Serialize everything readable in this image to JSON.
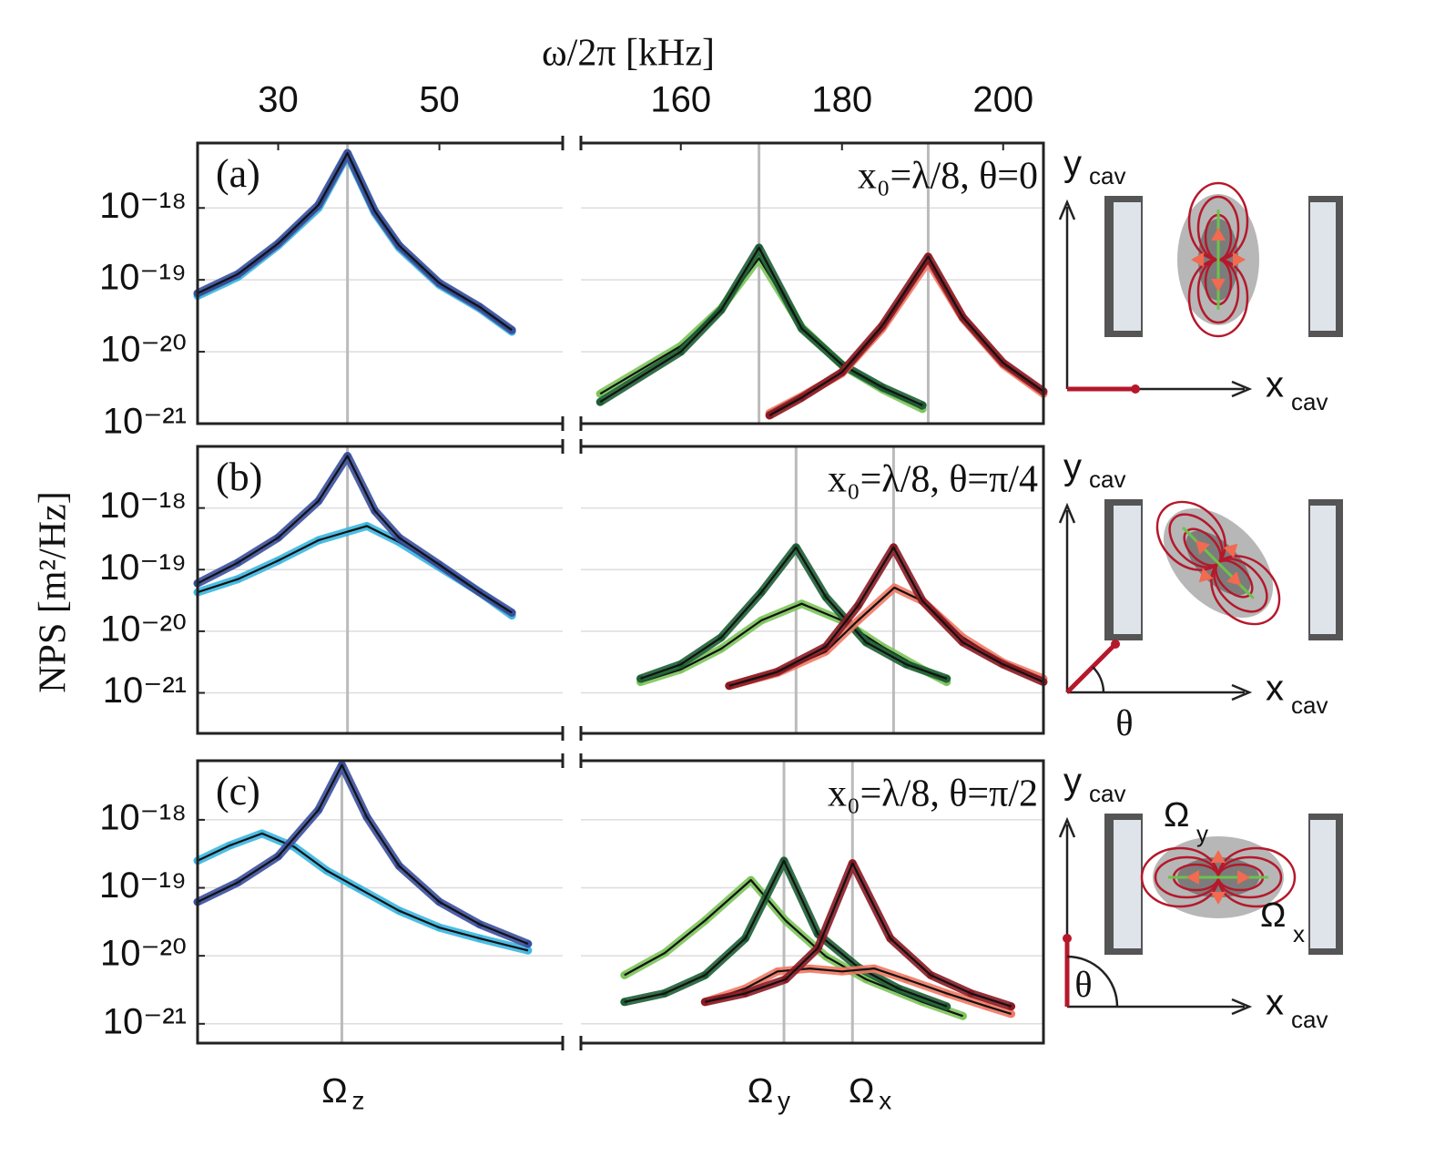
{
  "figure": {
    "x_label": "ω/2π [kHz]",
    "y_label": "NPS [m²/Hz]",
    "xticks_left": [
      30,
      50
    ],
    "xticks_right": [
      160,
      180,
      200
    ],
    "peak_labels": [
      {
        "symbol": "Ω",
        "sub": "z"
      },
      {
        "symbol": "Ω",
        "sub": "y"
      },
      {
        "symbol": "Ω",
        "sub": "x"
      }
    ],
    "diagram": {
      "y_axis": "y",
      "x_axis": "x",
      "subscript": "cav",
      "theta": "θ",
      "omega": "Ω",
      "omega_y_sub": "y",
      "omega_x_sub": "x"
    }
  },
  "chart_data": [
    {
      "type": "line",
      "label": "(a)",
      "annotation": "x₀=λ/8, θ=0",
      "log_y": true,
      "ylim": [
        1e-21,
        8e-18
      ],
      "yticks": [
        {
          "value": 1e-18,
          "label": "10⁻¹⁸"
        },
        {
          "value": 1e-19,
          "label": "10⁻¹⁹"
        },
        {
          "value": 1e-20,
          "label": "10⁻²⁰"
        },
        {
          "value": 1e-21,
          "label": "10⁻²¹"
        }
      ],
      "xlim_left": [
        20,
        65.3
      ],
      "xlim_right": [
        147.6,
        205
      ],
      "peak_lines": [
        38.6,
        169.7,
        190.7
      ],
      "series": [
        {
          "color": "#3bb6e0",
          "x": [
            20,
            25,
            30,
            35,
            38.6,
            42,
            45,
            50,
            55,
            59
          ],
          "values": [
            6e-20,
            1.1e-19,
            3e-19,
            1e-18,
            5.5e-18,
            8.5e-19,
            2.8e-19,
            8.5e-20,
            4e-20,
            1.9e-20
          ]
        },
        {
          "color": "#3a4f9c",
          "x": [
            20,
            25,
            30,
            35,
            38.6,
            42,
            45,
            50,
            55,
            59
          ],
          "values": [
            6.5e-20,
            1.2e-19,
            3.2e-19,
            1.1e-18,
            5.8e-18,
            9e-19,
            3e-19,
            9e-20,
            4.2e-20,
            2e-20
          ]
        },
        {
          "color": "#7cc45a",
          "x": [
            150,
            160,
            165,
            169.7,
            175,
            180,
            185,
            190
          ],
          "values": [
            2.6e-21,
            1.2e-20,
            4e-20,
            2e-19,
            2.2e-20,
            6.5e-21,
            3e-21,
            1.6e-21
          ]
        },
        {
          "color": "#1d5e34",
          "x": [
            150,
            160,
            165,
            169.7,
            175,
            180,
            185,
            190
          ],
          "values": [
            2e-21,
            1e-20,
            3.8e-20,
            2.8e-19,
            2.1e-20,
            6.6e-21,
            3.2e-21,
            1.8e-21
          ]
        },
        {
          "color": "#f07a65",
          "x": [
            171,
            175,
            180,
            185,
            190.7,
            195,
            200,
            205
          ],
          "values": [
            1.4e-21,
            2.4e-21,
            5e-21,
            2.1e-20,
            1.8e-19,
            2.9e-20,
            6.6e-21,
            2.6e-21
          ]
        },
        {
          "color": "#8b1a24",
          "x": [
            171,
            175,
            180,
            185,
            190.7,
            195,
            200,
            205
          ],
          "values": [
            1.3e-21,
            2.3e-21,
            5.2e-21,
            2.3e-20,
            2.1e-19,
            3e-20,
            7e-21,
            2.8e-21
          ]
        }
      ]
    },
    {
      "type": "line",
      "label": "(b)",
      "annotation": "x₀=λ/8, θ=π/4",
      "log_y": true,
      "ylim": [
        2.2e-22,
        1e-17
      ],
      "yticks": [
        {
          "value": 1e-18,
          "label": "10⁻¹⁸"
        },
        {
          "value": 1e-19,
          "label": "10⁻¹⁹"
        },
        {
          "value": 1e-20,
          "label": "10⁻²⁰"
        },
        {
          "value": 1e-21,
          "label": "10⁻²¹"
        }
      ],
      "xlim_left": [
        20,
        65.3
      ],
      "xlim_right": [
        147.6,
        205
      ],
      "peak_lines": [
        38.6,
        174.3,
        186.4
      ],
      "series": [
        {
          "color": "#3bb6e0",
          "x": [
            20,
            25,
            30,
            35,
            41,
            45,
            50,
            55,
            59
          ],
          "values": [
            4.3e-20,
            7e-20,
            1.4e-19,
            3e-19,
            5.1e-19,
            2.8e-19,
            1.1e-19,
            4.3e-20,
            1.8e-20
          ]
        },
        {
          "color": "#3a4f9c",
          "x": [
            20,
            25,
            30,
            35,
            38.6,
            42,
            45,
            50,
            55,
            59
          ],
          "values": [
            6e-20,
            1.3e-19,
            3.3e-19,
            1.3e-18,
            7e-18,
            9e-19,
            3.3e-19,
            1.2e-19,
            4.3e-20,
            2e-20
          ]
        },
        {
          "color": "#7cc45a",
          "x": [
            155,
            160,
            165,
            170,
            175,
            180,
            185,
            190,
            193
          ],
          "values": [
            1.5e-21,
            2.4e-21,
            5.2e-21,
            1.5e-20,
            2.8e-20,
            1.5e-20,
            5.6e-21,
            2.4e-21,
            1.5e-21
          ]
        },
        {
          "color": "#1d5e34",
          "x": [
            155,
            160,
            165,
            170,
            174.3,
            178,
            183,
            188,
            193
          ],
          "values": [
            1.7e-21,
            2.9e-21,
            7.9e-21,
            4.3e-20,
            2.3e-19,
            3.6e-20,
            6.6e-21,
            2.9e-21,
            1.7e-21
          ]
        },
        {
          "color": "#f07a65",
          "x": [
            166,
            172,
            178,
            182,
            186.5,
            190,
            195,
            200,
            205
          ],
          "values": [
            1.3e-21,
            2.1e-21,
            4.7e-21,
            1.5e-20,
            5.1e-20,
            3.1e-20,
            7.9e-21,
            3.1e-21,
            1.7e-21
          ]
        },
        {
          "color": "#8b1a24",
          "x": [
            166,
            172,
            178,
            182,
            186.4,
            190,
            195,
            200,
            205
          ],
          "values": [
            1.3e-21,
            2.2e-21,
            5.6e-21,
            2.6e-20,
            2.3e-19,
            3.1e-20,
            6.6e-21,
            2.9e-21,
            1.5e-21
          ]
        }
      ]
    },
    {
      "type": "line",
      "label": "(c)",
      "annotation": "x₀=λ/8, θ=π/2",
      "log_y": true,
      "ylim": [
        5.2e-22,
        7.4e-18
      ],
      "yticks": [
        {
          "value": 1e-18,
          "label": "10⁻¹⁸"
        },
        {
          "value": 1e-19,
          "label": "10⁻¹⁹"
        },
        {
          "value": 1e-20,
          "label": "10⁻²⁰"
        },
        {
          "value": 1e-21,
          "label": "10⁻²¹"
        }
      ],
      "xlim_left": [
        20,
        65.3
      ],
      "xlim_right": [
        147.6,
        205
      ],
      "peak_lines": [
        37.9,
        172.8,
        181.3
      ],
      "series": [
        {
          "color": "#3bb6e0",
          "x": [
            20,
            24,
            28,
            32,
            36,
            40,
            45,
            50,
            55,
            61
          ],
          "values": [
            2.5e-19,
            4.2e-19,
            6.3e-19,
            4e-19,
            1.8e-19,
            9.8e-20,
            4.6e-20,
            2.6e-20,
            1.8e-20,
            1.2e-20
          ]
        },
        {
          "color": "#3a4f9c",
          "x": [
            20,
            25,
            30,
            35,
            37.9,
            41,
            45,
            50,
            55,
            61
          ],
          "values": [
            6.2e-20,
            1.2e-19,
            2.9e-19,
            1.4e-18,
            6.4e-18,
            1.1e-18,
            2.1e-19,
            6.2e-20,
            2.9e-20,
            1.5e-20
          ]
        },
        {
          "color": "#7cc45a",
          "x": [
            153,
            158,
            163,
            168.7,
            173,
            178,
            183,
            190,
            195
          ],
          "values": [
            5.2e-21,
            1.1e-20,
            3.3e-20,
            1.3e-19,
            3.3e-20,
            9.8e-21,
            4.5e-21,
            2.1e-21,
            1.3e-21
          ]
        },
        {
          "color": "#1d5e34",
          "x": [
            153,
            158,
            163,
            168,
            172.8,
            177,
            182,
            187,
            193
          ],
          "values": [
            2.1e-21,
            2.8e-21,
            5.2e-21,
            1.8e-20,
            2.5e-19,
            2.1e-20,
            6.8e-21,
            3.3e-21,
            1.8e-21
          ]
        },
        {
          "color": "#f07a65",
          "x": [
            163,
            168,
            172,
            176,
            180,
            184,
            188,
            193,
            198,
            201
          ],
          "values": [
            2.1e-21,
            3.3e-21,
            5.9e-21,
            6.5e-21,
            5.9e-21,
            6.5e-21,
            4.5e-21,
            2.8e-21,
            1.8e-21,
            1.4e-21
          ]
        },
        {
          "color": "#8b1a24",
          "x": [
            163,
            168,
            173,
            177,
            181.3,
            186,
            191,
            196,
            201
          ],
          "values": [
            2.1e-21,
            2.8e-21,
            4.5e-21,
            1.3e-20,
            2.3e-19,
            1.8e-20,
            5.2e-21,
            2.8e-21,
            1.8e-21
          ]
        }
      ]
    }
  ]
}
